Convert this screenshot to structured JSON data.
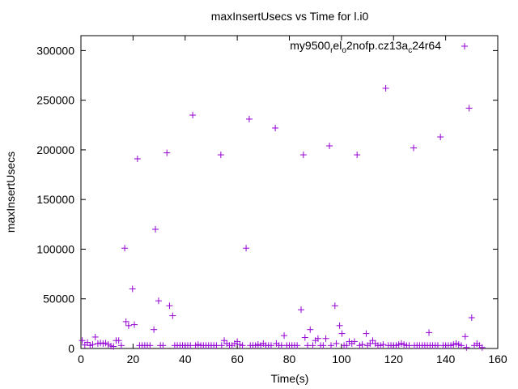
{
  "chart_data": {
    "type": "scatter",
    "title": "maxInsertUsecs vs Time for l.i0",
    "xlabel": "Time(s)",
    "ylabel": "maxInsertUsecs",
    "xlim": [
      0,
      160
    ],
    "ylim": [
      0,
      315000
    ],
    "xticks": [
      0,
      20,
      40,
      60,
      80,
      100,
      120,
      140,
      160
    ],
    "yticks": [
      0,
      50000,
      100000,
      150000,
      200000,
      250000,
      300000
    ],
    "grid": false,
    "legend_placement": "top-right",
    "series": [
      {
        "name": "my9500_rel_o2nofp.cz13a_c24r64",
        "name_parts": [
          {
            "t": "my9500",
            "sub": false
          },
          {
            "t": "r",
            "sub": true
          },
          {
            "t": "el",
            "sub": false
          },
          {
            "t": "o",
            "sub": true
          },
          {
            "t": "2nofp.cz13a",
            "sub": false
          },
          {
            "t": "c",
            "sub": true
          },
          {
            "t": "24r64",
            "sub": false
          }
        ],
        "color": "#9400d3",
        "marker": "plus",
        "points": [
          [
            0.5,
            8000
          ],
          [
            1.5,
            3500
          ],
          [
            2.5,
            6000
          ],
          [
            3.5,
            3000
          ],
          [
            4.5,
            4000
          ],
          [
            5.5,
            11500
          ],
          [
            6.5,
            5000
          ],
          [
            7.5,
            5500
          ],
          [
            8.5,
            5000
          ],
          [
            9.5,
            5500
          ],
          [
            10.5,
            4000
          ],
          [
            11.5,
            2500
          ],
          [
            12.5,
            2000
          ],
          [
            13.5,
            8000
          ],
          [
            14.5,
            8000
          ],
          [
            15.5,
            3000
          ],
          [
            16.8,
            101000
          ],
          [
            17.3,
            27000
          ],
          [
            18.3,
            23000
          ],
          [
            19.8,
            60000
          ],
          [
            20.5,
            24000
          ],
          [
            21.7,
            191000
          ],
          [
            22.5,
            3000
          ],
          [
            23.5,
            3000
          ],
          [
            24.5,
            3000
          ],
          [
            25.5,
            3000
          ],
          [
            26.5,
            3000
          ],
          [
            28,
            19000
          ],
          [
            28.6,
            120000
          ],
          [
            29.8,
            48000
          ],
          [
            30.5,
            3000
          ],
          [
            31.5,
            3000
          ],
          [
            33,
            197000
          ],
          [
            34,
            43000
          ],
          [
            35.2,
            33000
          ],
          [
            36,
            3000
          ],
          [
            37,
            3000
          ],
          [
            38,
            3000
          ],
          [
            39,
            3000
          ],
          [
            40,
            3000
          ],
          [
            41,
            3000
          ],
          [
            42,
            3000
          ],
          [
            42.9,
            235000
          ],
          [
            44,
            3000
          ],
          [
            45,
            4000
          ],
          [
            46,
            3000
          ],
          [
            47,
            3000
          ],
          [
            48,
            3000
          ],
          [
            49,
            3000
          ],
          [
            50,
            3000
          ],
          [
            51,
            3000
          ],
          [
            52,
            3000
          ],
          [
            53.7,
            195000
          ],
          [
            54,
            3000
          ],
          [
            55,
            8000
          ],
          [
            56,
            5000
          ],
          [
            57,
            3000
          ],
          [
            58,
            3000
          ],
          [
            59,
            5000
          ],
          [
            60,
            7000
          ],
          [
            61,
            4000
          ],
          [
            62,
            3000
          ],
          [
            63.4,
            101000
          ],
          [
            64.6,
            231000
          ],
          [
            65,
            3000
          ],
          [
            66,
            3000
          ],
          [
            67,
            3000
          ],
          [
            68,
            4000
          ],
          [
            69,
            3000
          ],
          [
            70,
            5000
          ],
          [
            71,
            3000
          ],
          [
            72,
            3000
          ],
          [
            73,
            3000
          ],
          [
            74.6,
            222000
          ],
          [
            75,
            5000
          ],
          [
            76,
            3000
          ],
          [
            77,
            3000
          ],
          [
            78,
            13000
          ],
          [
            79,
            3000
          ],
          [
            80,
            3000
          ],
          [
            81,
            3000
          ],
          [
            82,
            3000
          ],
          [
            83,
            3000
          ],
          [
            84.5,
            39000
          ],
          [
            85.4,
            195000
          ],
          [
            86,
            11000
          ],
          [
            87,
            3000
          ],
          [
            88,
            19000
          ],
          [
            89,
            3000
          ],
          [
            90,
            8000
          ],
          [
            91,
            10000
          ],
          [
            92,
            3000
          ],
          [
            93,
            3000
          ],
          [
            94,
            10000
          ],
          [
            95.4,
            204000
          ],
          [
            96,
            3000
          ],
          [
            97.5,
            43000
          ],
          [
            98,
            5000
          ],
          [
            99.3,
            23000
          ],
          [
            100.2,
            15000
          ],
          [
            101,
            3000
          ],
          [
            102,
            3000
          ],
          [
            103,
            7000
          ],
          [
            104,
            5000
          ],
          [
            105,
            7000
          ],
          [
            106,
            195000
          ],
          [
            107,
            3000
          ],
          [
            108,
            4000
          ],
          [
            109.5,
            15000
          ],
          [
            110,
            3000
          ],
          [
            111,
            5000
          ],
          [
            112,
            8000
          ],
          [
            113,
            5000
          ],
          [
            114,
            3000
          ],
          [
            115,
            3000
          ],
          [
            116,
            4000
          ],
          [
            117,
            262000
          ],
          [
            118,
            3000
          ],
          [
            119,
            3000
          ],
          [
            120,
            3000
          ],
          [
            121,
            3000
          ],
          [
            122,
            4000
          ],
          [
            123,
            5000
          ],
          [
            124,
            4000
          ],
          [
            125,
            3000
          ],
          [
            126,
            3000
          ],
          [
            127.7,
            202000
          ],
          [
            128,
            3000
          ],
          [
            129,
            3000
          ],
          [
            130,
            3000
          ],
          [
            131,
            3000
          ],
          [
            132,
            3000
          ],
          [
            133,
            3000
          ],
          [
            133.6,
            16000
          ],
          [
            134,
            3000
          ],
          [
            135,
            3000
          ],
          [
            136,
            3000
          ],
          [
            137,
            3000
          ],
          [
            138,
            213000
          ],
          [
            139,
            3000
          ],
          [
            140,
            3000
          ],
          [
            141,
            3000
          ],
          [
            142,
            3000
          ],
          [
            143,
            4000
          ],
          [
            144,
            5000
          ],
          [
            145,
            4000
          ],
          [
            146,
            3000
          ],
          [
            147.5,
            12000
          ],
          [
            148,
            1000
          ],
          [
            149,
            242000
          ],
          [
            150,
            31000
          ],
          [
            151,
            3000
          ],
          [
            152,
            5000
          ],
          [
            153,
            3000
          ],
          [
            154,
            1000
          ]
        ]
      }
    ]
  }
}
